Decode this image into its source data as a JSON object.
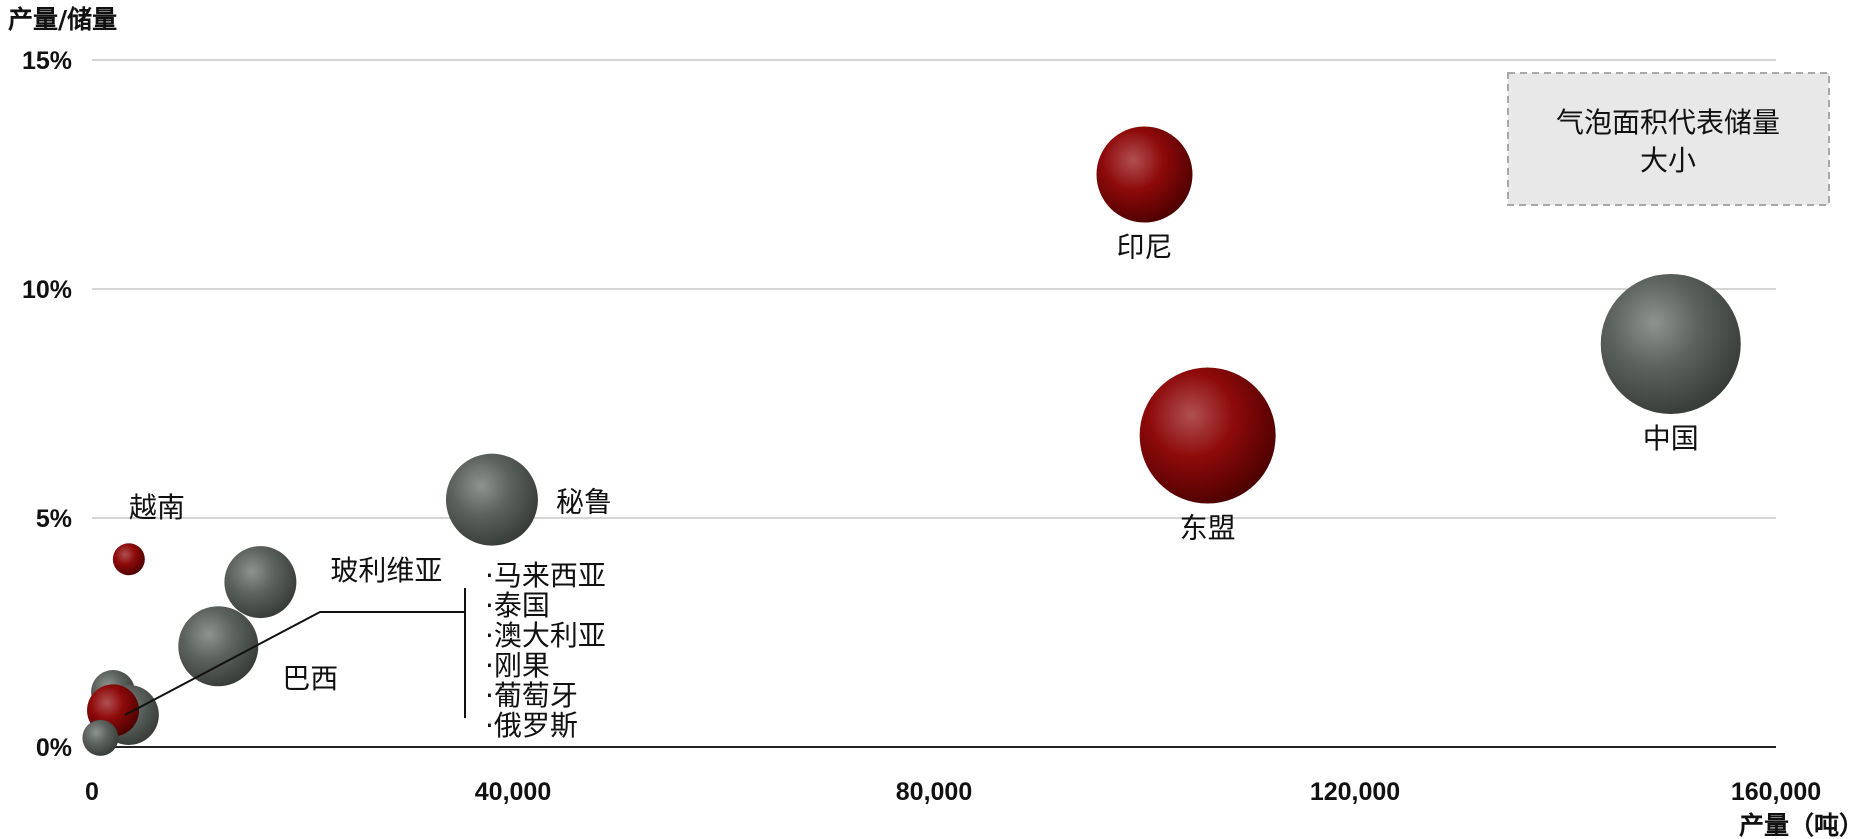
{
  "colors": {
    "china": "#6b6b6b",
    "asean": "#8b0000",
    "other_gray": "#555b57",
    "other_red": "#8b0000",
    "grid": "#c8c8c8",
    "axis": "#222222"
  },
  "chart_data": {
    "type": "scatter",
    "ylabel": "产量/储量",
    "xlabel": "产量（吨）",
    "xlim": [
      0,
      160000
    ],
    "ylim": [
      0,
      15
    ],
    "x_ticks": [
      {
        "value": 0,
        "label": "0"
      },
      {
        "value": 40000,
        "label": "40,000"
      },
      {
        "value": 80000,
        "label": "80,000"
      },
      {
        "value": 120000,
        "label": "120,000"
      },
      {
        "value": 160000,
        "label": "160,000"
      }
    ],
    "y_ticks": [
      {
        "value": 0,
        "label": "0%"
      },
      {
        "value": 5,
        "label": "5%"
      },
      {
        "value": 10,
        "label": "10%"
      },
      {
        "value": 15,
        "label": "15%"
      }
    ],
    "grid": true,
    "note": [
      "气泡面积代表储量",
      "大小"
    ],
    "points": [
      {
        "label": "中国",
        "x": 150000,
        "y": 8.8,
        "size": 70,
        "color": "gray"
      },
      {
        "label": "东盟",
        "x": 106000,
        "y": 6.8,
        "size": 68,
        "color": "red"
      },
      {
        "label": "印尼",
        "x": 100000,
        "y": 12.5,
        "size": 48,
        "color": "red"
      },
      {
        "label": "秘鲁",
        "x": 38000,
        "y": 5.4,
        "size": 46,
        "color": "gray"
      },
      {
        "label": "玻利维亚",
        "x": 16000,
        "y": 3.6,
        "size": 36,
        "color": "gray"
      },
      {
        "label": "巴西",
        "x": 12000,
        "y": 2.2,
        "size": 40,
        "color": "gray"
      },
      {
        "label": "越南",
        "x": 3500,
        "y": 4.1,
        "size": 16,
        "color": "red"
      },
      {
        "label": "",
        "x": 2000,
        "y": 1.2,
        "size": 22,
        "color": "gray"
      },
      {
        "label": "",
        "x": 3500,
        "y": 0.7,
        "size": 30,
        "color": "gray"
      },
      {
        "label": "",
        "x": 2000,
        "y": 0.8,
        "size": 26,
        "color": "red"
      },
      {
        "label": "",
        "x": 800,
        "y": 0.2,
        "size": 18,
        "color": "gray"
      }
    ],
    "cluster_list": [
      "·马来西亚",
      "·泰国",
      "·澳大利亚",
      "·刚果",
      "·葡萄牙",
      "·俄罗斯"
    ]
  }
}
